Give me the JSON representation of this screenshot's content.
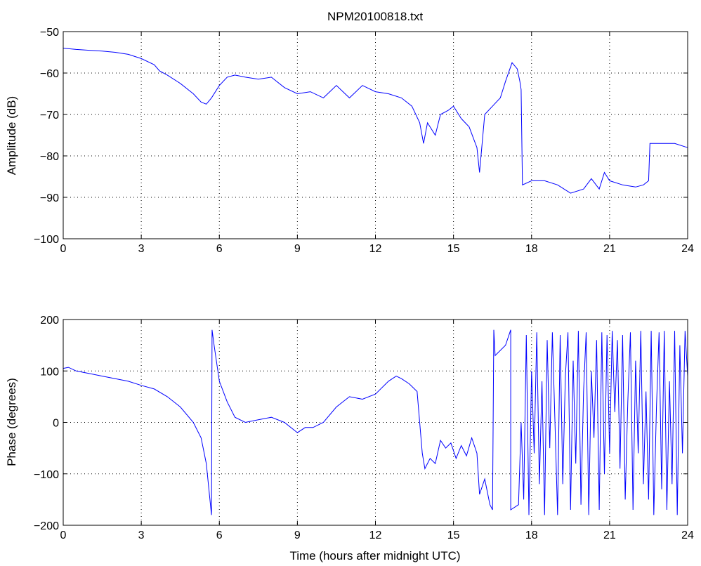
{
  "window": {
    "title": "NPM20100818.txt"
  },
  "chart_data": [
    {
      "type": "line",
      "title": "NPM20100818.txt",
      "xlabel": "",
      "ylabel": "Amplitude (dB)",
      "xlim": [
        0,
        24
      ],
      "ylim": [
        -100,
        -50
      ],
      "xticks": [
        0,
        3,
        6,
        9,
        12,
        15,
        18,
        21,
        24
      ],
      "xtick_labels": [
        "0",
        "3",
        "6",
        "9",
        "12",
        "15",
        "18",
        "21",
        "24"
      ],
      "yticks": [
        -100,
        -90,
        -80,
        -70,
        -60,
        -50
      ],
      "ytick_labels": [
        "−100",
        "−90",
        "−80",
        "−70",
        "−60",
        "−50"
      ],
      "grid": true,
      "color": "#0000ff",
      "series": [
        {
          "x": [
            0,
            0.5,
            1,
            1.5,
            2,
            2.5,
            3,
            3.5,
            3.7,
            4,
            4.5,
            5,
            5.3,
            5.5,
            5.7,
            6,
            6.3,
            6.6,
            7,
            7.5,
            8,
            8.5,
            9,
            9.5,
            10,
            10.5,
            11,
            11.5,
            12,
            12.5,
            13,
            13.4,
            13.7,
            13.85,
            14,
            14.3,
            14.5,
            14.8,
            15,
            15.3,
            15.6,
            15.9,
            16,
            16.2,
            16.5,
            16.8,
            17,
            17.25,
            17.45,
            17.55,
            17.6,
            17.65,
            18,
            18.5,
            19,
            19.5,
            20,
            20.3,
            20.6,
            20.8,
            21,
            21.5,
            22,
            22.3,
            22.5,
            22.55,
            23,
            23.5,
            24
          ],
          "y": [
            -54,
            -54.3,
            -54.5,
            -54.7,
            -55,
            -55.5,
            -56.5,
            -58,
            -59.5,
            -60.5,
            -62.5,
            -65,
            -67,
            -67.5,
            -66,
            -63,
            -61,
            -60.5,
            -61,
            -61.5,
            -61,
            -63.5,
            -65,
            -64.5,
            -66,
            -63,
            -66,
            -63,
            -64.5,
            -65,
            -66,
            -68,
            -72,
            -77,
            -72,
            -75,
            -70,
            -69,
            -68,
            -71,
            -73,
            -78,
            -84,
            -70,
            -68,
            -66,
            -62,
            -57.5,
            -59,
            -62,
            -64,
            -87,
            -86,
            -86,
            -87,
            -89,
            -88,
            -85.5,
            -88,
            -84,
            -86,
            -87,
            -87.5,
            -87,
            -86,
            -77,
            -77,
            -77,
            -78
          ]
        }
      ]
    },
    {
      "type": "line",
      "title": "",
      "xlabel": "Time (hours after midnight UTC)",
      "ylabel": "Phase (degrees)",
      "xlim": [
        0,
        24
      ],
      "ylim": [
        -200,
        200
      ],
      "xticks": [
        0,
        3,
        6,
        9,
        12,
        15,
        18,
        21,
        24
      ],
      "xtick_labels": [
        "0",
        "3",
        "6",
        "9",
        "12",
        "15",
        "18",
        "21",
        "24"
      ],
      "yticks": [
        -200,
        -100,
        0,
        100,
        200
      ],
      "ytick_labels": [
        "−200",
        "−100",
        "0",
        "100",
        "200"
      ],
      "grid": true,
      "color": "#0000ff",
      "series": [
        {
          "x": [
            0,
            0.2,
            0.5,
            1,
            1.5,
            2,
            2.5,
            3,
            3.5,
            4,
            4.5,
            5,
            5.3,
            5.5,
            5.7,
            5.72,
            5.8,
            6,
            6.3,
            6.6,
            7,
            7.5,
            8,
            8.5,
            9,
            9.3,
            9.6,
            10,
            10.5,
            11,
            11.5,
            12,
            12.5,
            12.8,
            13,
            13.3,
            13.6,
            13.8,
            13.9,
            14.1,
            14.3,
            14.5,
            14.7,
            14.9,
            15.1,
            15.3,
            15.5,
            15.7,
            15.9,
            16,
            16.2,
            16.4,
            16.5,
            16.55,
            16.6,
            16.7,
            17,
            17.2,
            17.2,
            17.5,
            17.6,
            17.7,
            17.8,
            17.9,
            18.0,
            18.1,
            18.2,
            18.3,
            18.4,
            18.5,
            18.6,
            18.7,
            18.8,
            18.9,
            19.0,
            19.1,
            19.2,
            19.3,
            19.4,
            19.5,
            19.6,
            19.7,
            19.8,
            19.9,
            20.0,
            20.1,
            20.2,
            20.3,
            20.4,
            20.5,
            20.6,
            20.7,
            20.8,
            20.9,
            21.0,
            21.1,
            21.2,
            21.3,
            21.4,
            21.5,
            21.6,
            21.7,
            21.8,
            21.9,
            22.0,
            22.1,
            22.2,
            22.3,
            22.4,
            22.5,
            22.6,
            22.7,
            22.8,
            22.9,
            23.0,
            23.1,
            23.2,
            23.3,
            23.4,
            23.5,
            23.6,
            23.7,
            23.8,
            23.9,
            24.0
          ],
          "y": [
            105,
            107,
            100,
            95,
            90,
            85,
            80,
            72,
            65,
            50,
            30,
            0,
            -30,
            -80,
            -180,
            180,
            150,
            80,
            40,
            10,
            0,
            5,
            10,
            0,
            -20,
            -10,
            -10,
            0,
            30,
            50,
            45,
            55,
            80,
            90,
            85,
            75,
            60,
            -60,
            -90,
            -70,
            -80,
            -35,
            -50,
            -40,
            -70,
            -45,
            -65,
            -30,
            -60,
            -140,
            -110,
            -160,
            -170,
            180,
            130,
            135,
            150,
            180,
            -170,
            -160,
            0,
            -150,
            170,
            -180,
            100,
            -60,
            175,
            -120,
            80,
            -180,
            160,
            -50,
            175,
            0,
            -180,
            170,
            -120,
            90,
            175,
            -170,
            120,
            -80,
            178,
            -160,
            60,
            175,
            -180,
            100,
            -30,
            160,
            -170,
            175,
            -100,
            170,
            -60,
            178,
            20,
            160,
            -90,
            170,
            -150,
            40,
            175,
            -170,
            120,
            -60,
            178,
            -120,
            60,
            -150,
            178,
            -180,
            30,
            175,
            -130,
            178,
            -170,
            80,
            -120,
            178,
            -180,
            150,
            -60,
            178,
            90
          ]
        }
      ]
    }
  ]
}
